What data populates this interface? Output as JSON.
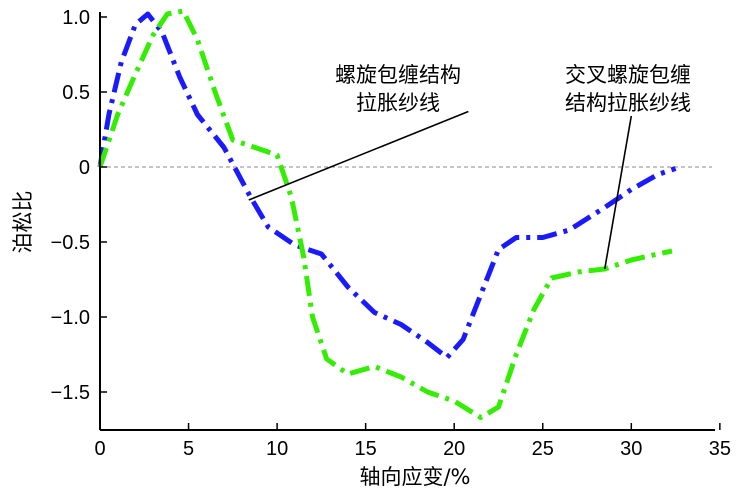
{
  "chart_data": {
    "type": "line",
    "xlabel": "轴向应变/%",
    "ylabel": "泊松比",
    "xlim": [
      0,
      35
    ],
    "ylim": [
      -1.75,
      1.05
    ],
    "x_ticks": [
      0,
      5,
      10,
      15,
      20,
      25,
      30,
      35
    ],
    "x_tick_labels": [
      "0",
      "5",
      "10",
      "15",
      "20",
      "25",
      "30",
      "35"
    ],
    "y_ticks": [
      1.0,
      0.5,
      0,
      -0.5,
      -1.0,
      -1.5
    ],
    "y_tick_labels": [
      "1.0",
      "0.5",
      "0",
      "−0.5",
      "−1.0",
      "−1.5"
    ],
    "reference_line_y": 0,
    "grid": false,
    "series": [
      {
        "color": "#1a1aff",
        "dash": "dashdot",
        "points": [
          [
            0,
            0
          ],
          [
            0.5,
            0.35
          ],
          [
            1.2,
            0.7
          ],
          [
            2,
            0.95
          ],
          [
            2.7,
            1.02
          ],
          [
            3.5,
            0.9
          ],
          [
            4.5,
            0.6
          ],
          [
            5.5,
            0.35
          ],
          [
            7,
            0.13
          ],
          [
            8.5,
            -0.2
          ],
          [
            9.5,
            -0.4
          ],
          [
            11,
            -0.52
          ],
          [
            12.5,
            -0.58
          ],
          [
            14,
            -0.8
          ],
          [
            15.5,
            -0.97
          ],
          [
            17,
            -1.05
          ],
          [
            18.5,
            -1.17
          ],
          [
            19.6,
            -1.27
          ],
          [
            20.5,
            -1.15
          ],
          [
            21.5,
            -0.85
          ],
          [
            22.5,
            -0.55
          ],
          [
            23.5,
            -0.47
          ],
          [
            25,
            -0.47
          ],
          [
            26.5,
            -0.42
          ],
          [
            28.5,
            -0.27
          ],
          [
            30,
            -0.15
          ],
          [
            31.5,
            -0.05
          ],
          [
            32.5,
            -0.01
          ]
        ]
      },
      {
        "color": "#33ee00",
        "dash": "dashdot",
        "points": [
          [
            0,
            0
          ],
          [
            1,
            0.35
          ],
          [
            2,
            0.62
          ],
          [
            3,
            0.88
          ],
          [
            3.8,
            1.02
          ],
          [
            4.7,
            1.04
          ],
          [
            5.5,
            0.85
          ],
          [
            6.5,
            0.5
          ],
          [
            7.5,
            0.18
          ],
          [
            9,
            0.12
          ],
          [
            10,
            0.08
          ],
          [
            10.8,
            -0.2
          ],
          [
            11.5,
            -0.6
          ],
          [
            12,
            -1.0
          ],
          [
            12.8,
            -1.28
          ],
          [
            14,
            -1.38
          ],
          [
            15.5,
            -1.33
          ],
          [
            17,
            -1.4
          ],
          [
            18.5,
            -1.5
          ],
          [
            20,
            -1.56
          ],
          [
            21.5,
            -1.67
          ],
          [
            22.5,
            -1.6
          ],
          [
            23.5,
            -1.25
          ],
          [
            24.5,
            -0.95
          ],
          [
            25.5,
            -0.74
          ],
          [
            27,
            -0.7
          ],
          [
            28.5,
            -0.68
          ],
          [
            30,
            -0.62
          ],
          [
            31.5,
            -0.58
          ],
          [
            32.3,
            -0.56
          ]
        ]
      }
    ],
    "annotations": [
      {
        "lines": [
          "螺旋包缠结构",
          "拉胀纱线"
        ],
        "arrow_to": [
          8.4,
          -0.22
        ],
        "arrow_from": [
          20.8,
          0.37
        ]
      },
      {
        "lines": [
          "交叉螺旋包缠",
          "结构拉胀纱线"
        ],
        "arrow_to": [
          28.5,
          -0.68
        ],
        "arrow_from": [
          30,
          0.34
        ]
      }
    ]
  }
}
